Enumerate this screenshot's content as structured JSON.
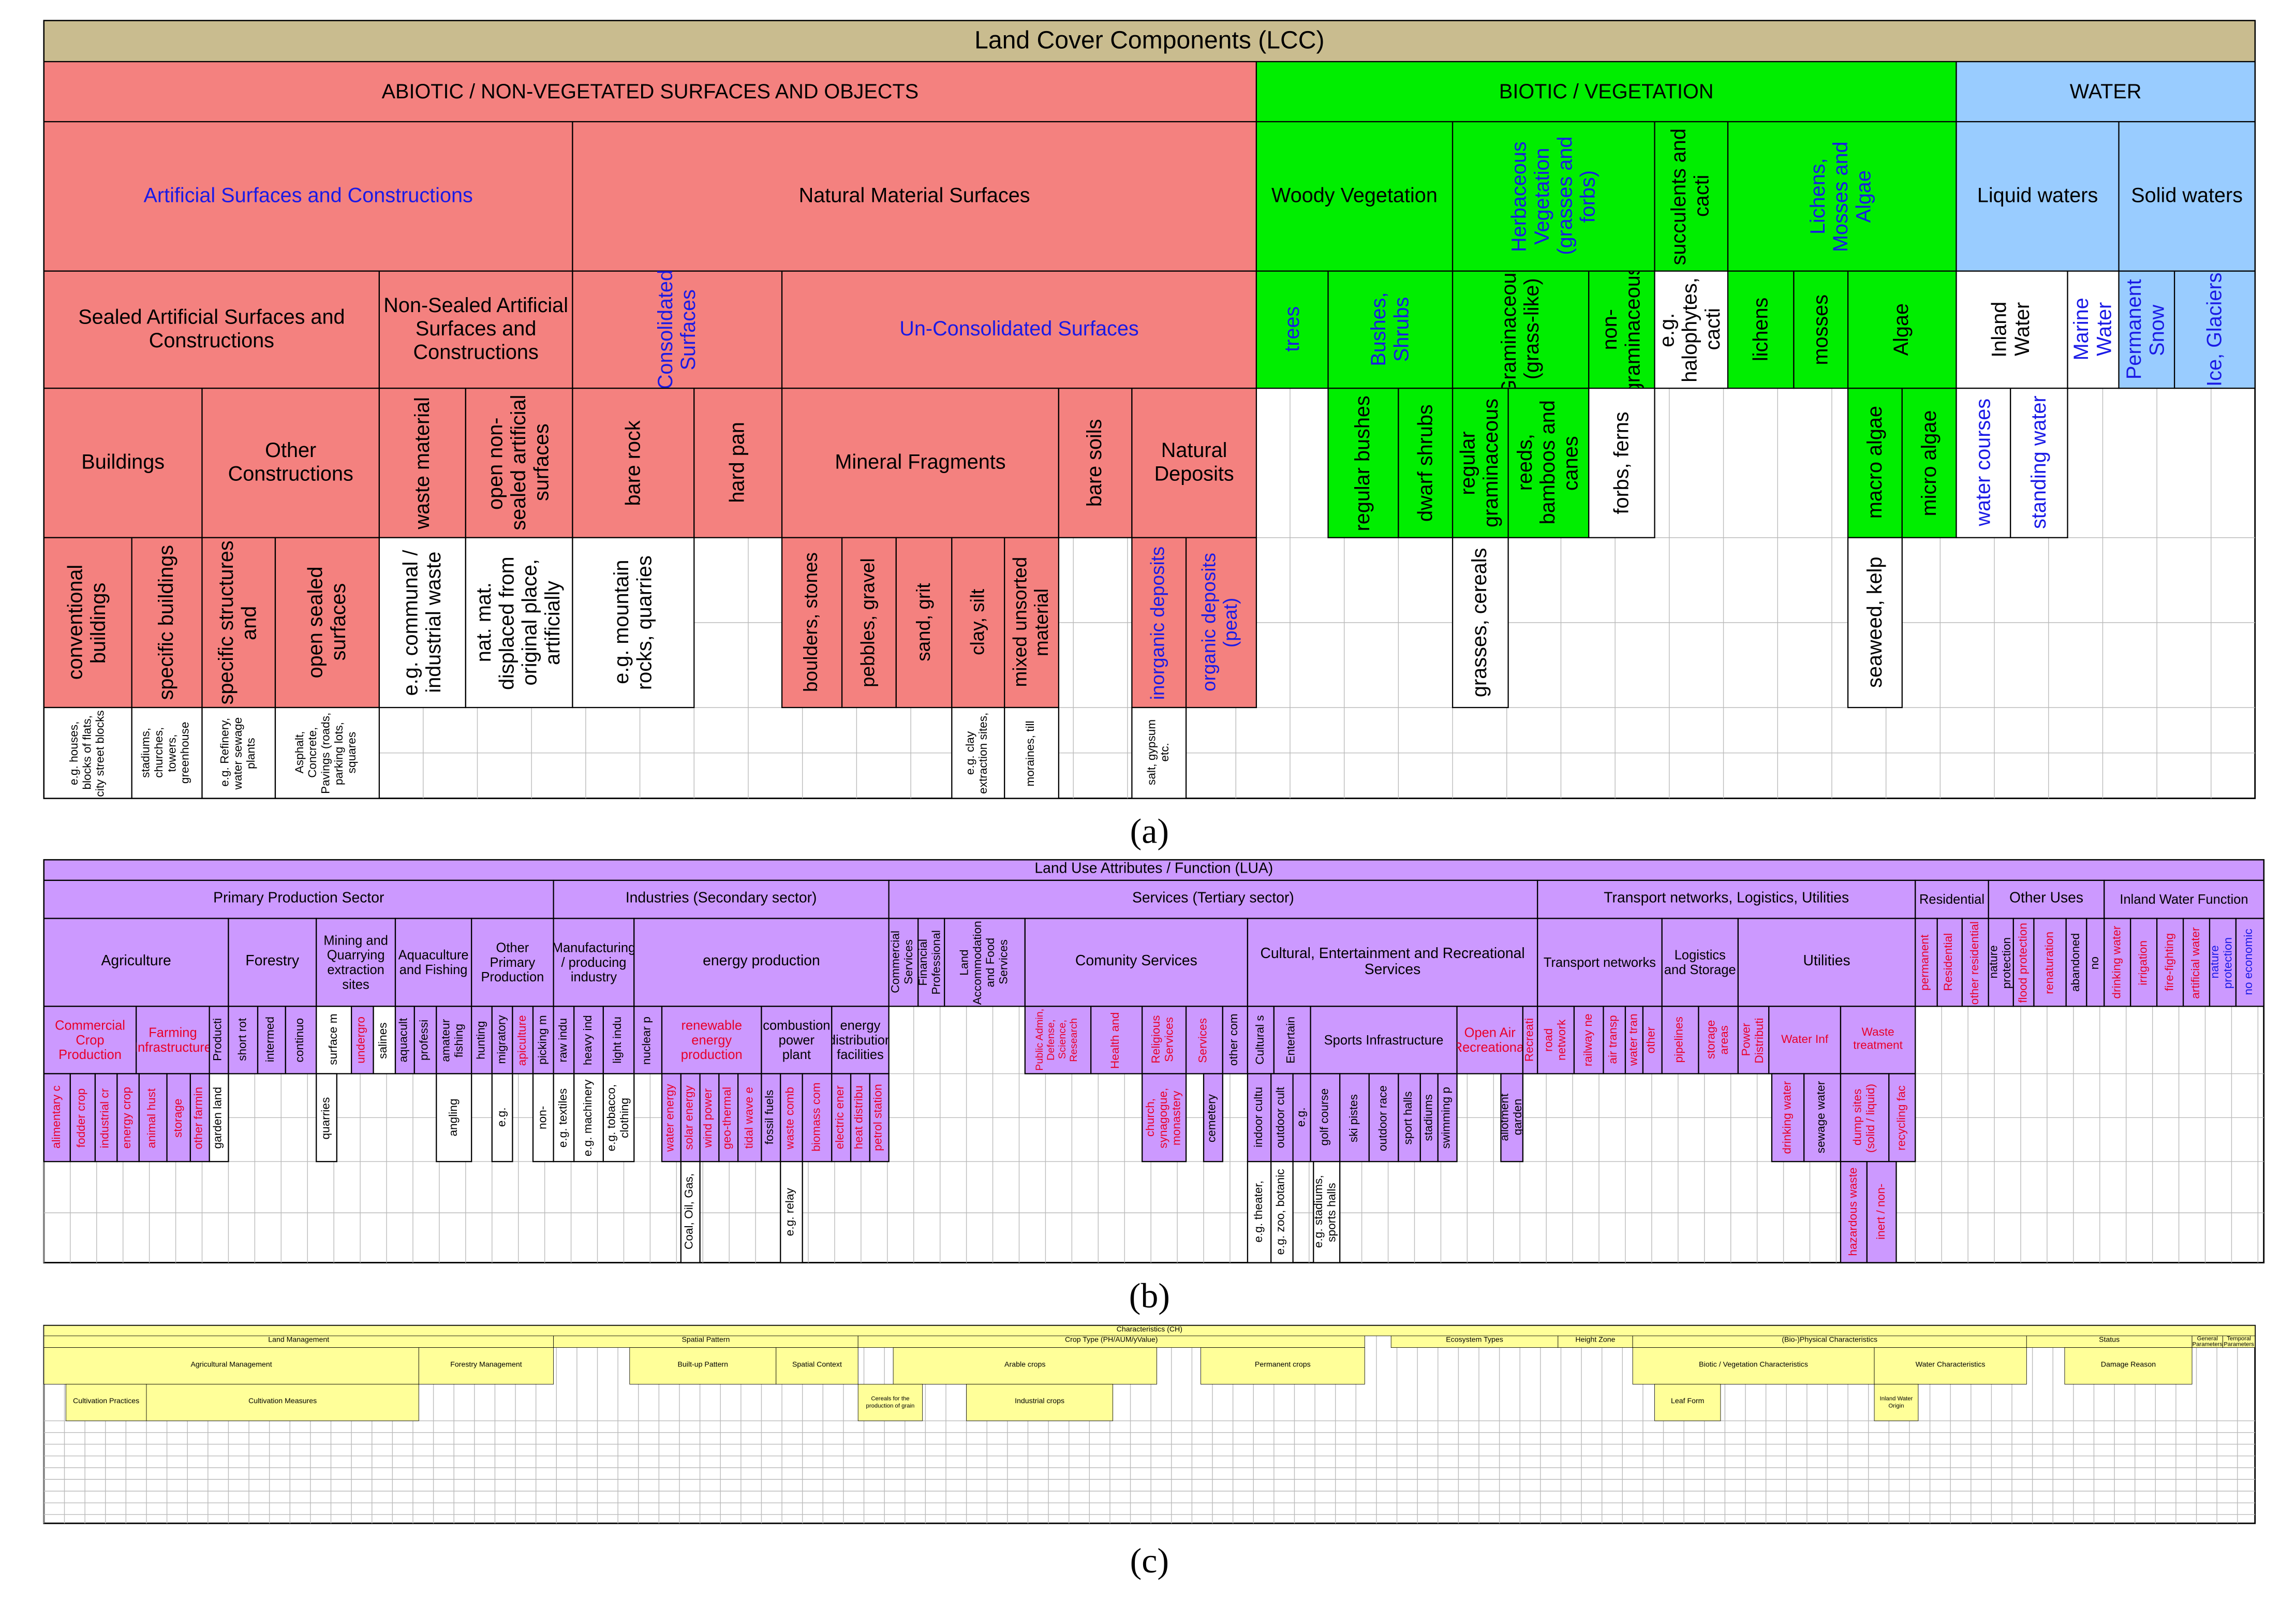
{
  "panel_a": {
    "cells": [
      "Land Cover Components (LCC)",
      "ABIOTIC / NON-VEGETATED SURFACES AND OBJECTS",
      "BIOTIC / VEGETATION",
      "WATER",
      "Artificial Surfaces and Constructions",
      "Natural Material Surfaces",
      "Woody Vegetation",
      "Herbaceous Vegetation (grasses and forbs)",
      "succulents and cacti",
      "Lichens, Mosses and Algae",
      "Liquid waters",
      "Solid waters",
      "Sealed Artificial Surfaces and Constructions",
      "Non-Sealed Artificial Surfaces and Constructions",
      "Consolidated Surfaces",
      "Un-Consolidated Surfaces",
      "trees",
      "Bushes, Shrubs",
      "Graminaceous (grass-like)",
      "non-graminaceous",
      "e.g. halophytes, cacti",
      "lichens",
      "mosses",
      "Algae",
      "Inland Water",
      "Marine Water",
      "Permanent Snow",
      "Ice, Glaciers",
      "Buildings",
      "Other Constructions",
      "waste material",
      "open non-sealed artificial surfaces",
      "bare rock",
      "hard pan",
      "Mineral Fragments",
      "bare soils",
      "Natural Deposits",
      "regular bushes",
      "dwarf shrubs",
      "regular graminaceous",
      "reeds, bamboos and canes",
      "forbs, ferns",
      "macro algae",
      "micro algae",
      "water courses",
      "standing water",
      "conventional buildings",
      "specific buildings",
      "specific structures and",
      "open sealed surfaces",
      "e.g. communal / industrial waste",
      "nat. mat. displaced from original place, artificially",
      "e.g. mountain rocks, quarries",
      "boulders, stones",
      "pebbles, gravel",
      "sand, grit",
      "clay, silt",
      "mixed unsorted material",
      "inorganic deposits",
      "organic deposits (peat)",
      "grasses, cereals",
      "seaweed, kelp",
      "e.g. houses, blocks of flats, city street blocks",
      "stadiums, churches, towers, greenhouse",
      "e.g. Refinery, water sewage plants",
      "Asphalt, Concrete, Pavings (roads, parking lots, squares",
      "e.g. clay extraction sites,",
      "moraines, till",
      "salt, gypsum etc."
    ]
  },
  "panel_b": {
    "cells": [
      "Land Use Attributes / Function (LUA)",
      "Primary Production Sector",
      "Industries (Secondary sector)",
      "Services (Tertiary sector)",
      "Transport networks, Logistics, Utilities",
      "Residential",
      "Other Uses",
      "Inland Water Function",
      "Agriculture",
      "Forestry",
      "Mining and Quarrying extraction sites",
      "Aquaculture and Fishing",
      "Other Primary Production",
      "Manufacturing / producing industry",
      "energy production",
      "Commercial Services",
      "Financial Professional",
      "Land Accommodation and Food Services",
      "Comunity Services",
      "Cultural, Entertainment and Recreational Services",
      "Transport networks",
      "Logistics and Storage",
      "Utilities",
      "permanent",
      "Residential",
      "other residential",
      "nature protection",
      "flood protection",
      "renaturation",
      "abandoned",
      "no",
      "drinking water",
      "irrigation",
      "fire-fighting",
      "artificial water",
      "nature protection",
      "no economic",
      "Commercial Crop Production",
      "Farming Infrastructure",
      "Producti",
      "short rot",
      "intermed",
      "continuo",
      "surface m",
      "undergro",
      "salines",
      "aquacult",
      "professi",
      "amateur fishing",
      "hunting",
      "migratory",
      "apiculture",
      "picking m",
      "raw indu",
      "heavy ind",
      "light indu",
      "nuclear p",
      "renewable energy production",
      "combustion power plant",
      "energy distribution facilities",
      "Public Admin, Defense, Science, Research",
      "Health and",
      "Religious Services",
      "Services",
      "other com",
      "Cultural s",
      "Entertain",
      "Sports Infrastructure",
      "Open Air Recreational",
      "Recreati",
      "road network",
      "railway ne",
      "air transp",
      "water tran",
      "other",
      "pipelines",
      "storage areas",
      "Power Distributi",
      "Water Inf",
      "Waste treatment",
      "alimentary c",
      "fodder crop",
      "industrial cr",
      "energy crop",
      "animal hust",
      "storage",
      "other farmin",
      "garden land",
      "quarries",
      "angling",
      "e.g.",
      "non-",
      "e.g. textiles",
      "e.g. machinery",
      "e.g. tobacco, clothing",
      "water energy",
      "solar energy",
      "wind power",
      "geo-thermal",
      "tidal wave e",
      "fossil fuels",
      "waste comb",
      "biomass com",
      "electric ener",
      "heat distribu",
      "petrol station",
      "church, synagogue, monastery",
      "cemetery",
      "indoor cultu",
      "outdoor cult",
      "e.g.",
      "golf course",
      "ski pistes",
      "outdoor race",
      "sport halls",
      "stadiums",
      "swimming p",
      "allotment garden",
      "drinking water",
      "sewage water",
      "dump sites (solid / liquid)",
      "recycling fac",
      "Coal, Oil, Gas,",
      "e.g. relay",
      "e.g. theater,",
      "e.g. zoo, botanic",
      "e.g. stadiums, sports halls",
      "hazardous waste",
      "inert / non-"
    ]
  },
  "panel_c": {
    "cells": [
      "Characteristics (CH)",
      "Land Management",
      "Spatial Pattern",
      "Crop Type (PH/AUM/yValue)",
      "Ecosystem Types",
      "Height Zone",
      "(Bio-)Physical Characteristics",
      "Status",
      "General Parameters",
      "Temporal Parameters",
      "Agricultural Management",
      "Forestry Management",
      "Built-up Pattern",
      "Spatial Context",
      "Arable crops",
      "Permanent crops",
      "Biotic / Vegetation Characteristics",
      "Water Characteristics",
      "Damage Reason",
      "Cultivation Practices",
      "Cultivation Measures",
      "Cereals for the production of grain",
      "Industrial crops",
      "Leaf Form",
      "Inland Water Origin"
    ]
  },
  "captions": [
    "(a)",
    "(b)",
    "(c)"
  ]
}
